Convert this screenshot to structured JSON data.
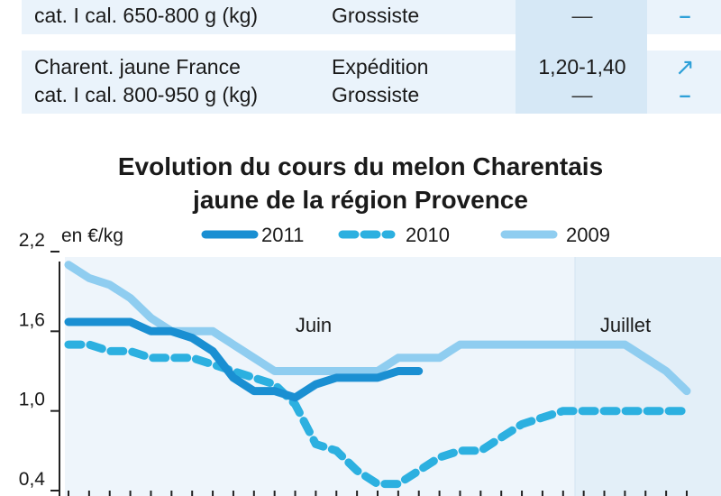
{
  "price_table": {
    "rows": [
      {
        "product_line1": "cat. I cal. 650-800 g (kg)",
        "market_line1": "Grossiste",
        "price_line1": "—",
        "trend_line1": "–"
      },
      {
        "product_line1": "Charent. jaune France",
        "product_line2": "cat. I cal. 800-950 g (kg)",
        "market_line1": "Expédition",
        "market_line2": "Grossiste",
        "price_line1": "1,20-1,40",
        "price_line2": "—",
        "trend_line1": "↗",
        "trend_line2": "–"
      }
    ]
  },
  "chart_data": {
    "type": "line",
    "title": "Evolution du cours du melon Charentais jaune de la région Provence",
    "title_line1": "Evolution du cours du melon Charentais",
    "title_line2": "jaune de la région Provence",
    "ylabel": "en €/kg",
    "ylim": [
      0.4,
      2.2
    ],
    "yticks": [
      0.4,
      1.0,
      1.6,
      2.2
    ],
    "ytick_labels": [
      "0,4",
      "1,0",
      "1,6",
      "2,2"
    ],
    "period_labels": [
      "Juin",
      "Juillet"
    ],
    "legend": [
      "2011",
      "2010",
      "2009"
    ],
    "legend_position": "top",
    "colors": {
      "s2011": "#1a8fd2",
      "s2010": "#2cb0e0",
      "s2009": "#8fcdf0",
      "band": "#eef5fb",
      "axis": "#222222"
    },
    "x": [
      0,
      1,
      2,
      3,
      4,
      5,
      6,
      7,
      8,
      9,
      10,
      11,
      12,
      13,
      14,
      15,
      16,
      17,
      18,
      19,
      20,
      21,
      22,
      23,
      24,
      25,
      26,
      27,
      28,
      29,
      30
    ],
    "series": [
      {
        "name": "2011",
        "style": "solid",
        "values": [
          1.67,
          1.67,
          1.67,
          1.67,
          1.6,
          1.6,
          1.55,
          1.45,
          1.25,
          1.15,
          1.15,
          1.1,
          1.2,
          1.25,
          1.25,
          1.25,
          1.3,
          1.3,
          null,
          null,
          null,
          null,
          null,
          null,
          null,
          null,
          null,
          null,
          null,
          null,
          null
        ]
      },
      {
        "name": "2010",
        "style": "dashed",
        "values": [
          1.5,
          1.5,
          1.45,
          1.45,
          1.4,
          1.4,
          1.4,
          1.35,
          1.3,
          1.25,
          1.2,
          1.05,
          0.75,
          0.7,
          0.55,
          0.45,
          0.45,
          0.55,
          0.65,
          0.7,
          0.7,
          0.8,
          0.9,
          0.95,
          1.0,
          1.0,
          1.0,
          1.0,
          1.0,
          1.0,
          1.0
        ]
      },
      {
        "name": "2009",
        "style": "solid",
        "values": [
          2.1,
          2.0,
          1.95,
          1.85,
          1.7,
          1.6,
          1.6,
          1.6,
          1.5,
          1.4,
          1.3,
          1.3,
          1.3,
          1.3,
          1.3,
          1.3,
          1.4,
          1.4,
          1.4,
          1.5,
          1.5,
          1.5,
          1.5,
          1.5,
          1.5,
          1.5,
          1.5,
          1.5,
          1.4,
          1.3,
          1.15
        ]
      }
    ]
  }
}
